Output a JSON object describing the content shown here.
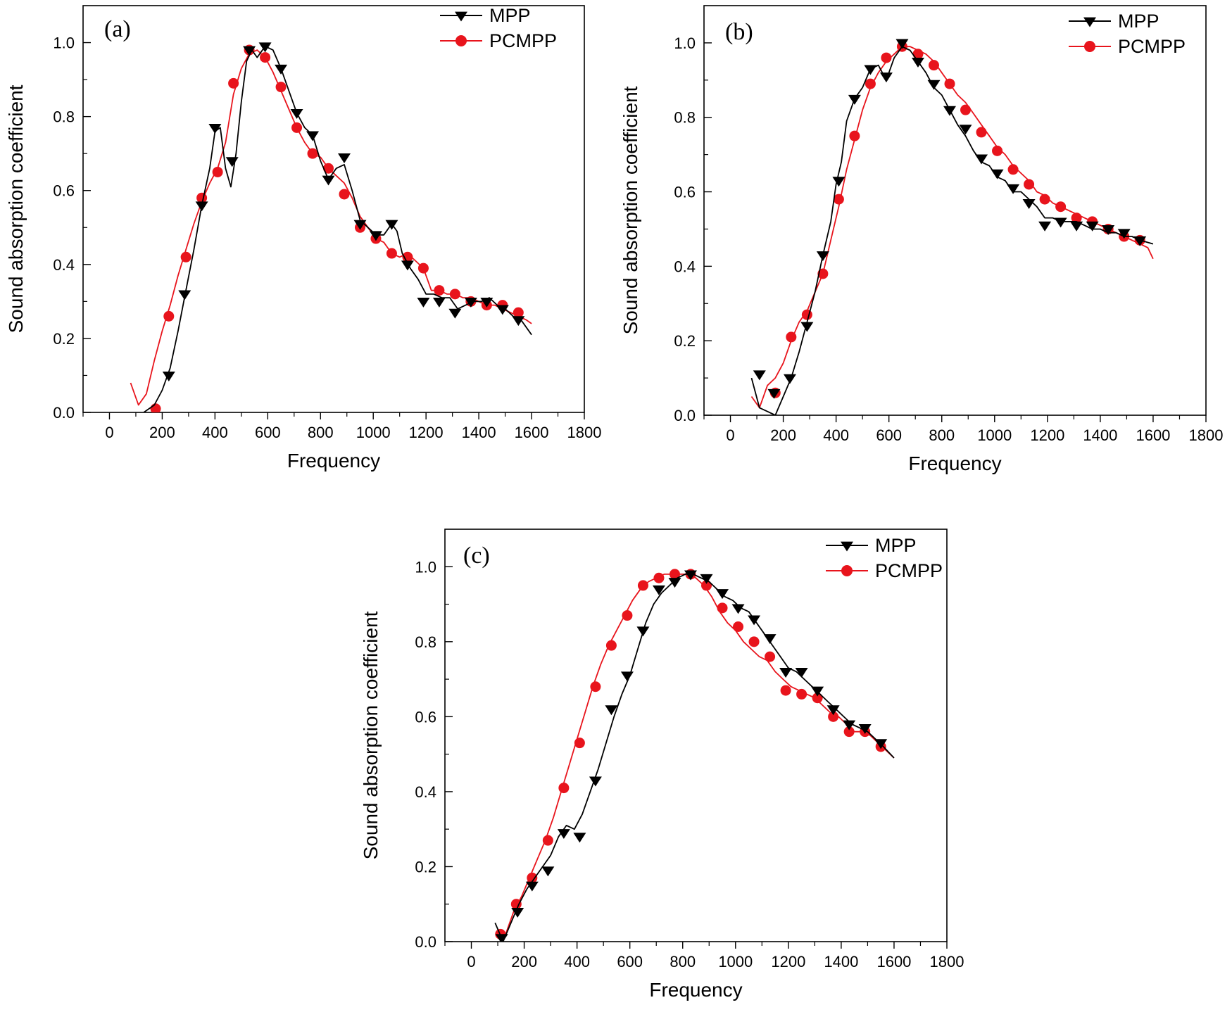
{
  "chart_data": [
    {
      "type": "line",
      "panel": "(a)",
      "xlabel": "Frequency",
      "ylabel": "Sound absorption coefficient",
      "xlim": [
        -100,
        1800
      ],
      "ylim": [
        0,
        1.1
      ],
      "xticks": [
        0,
        200,
        400,
        600,
        800,
        1000,
        1200,
        1400,
        1600,
        1800
      ],
      "yticks": [
        0.0,
        0.2,
        0.4,
        0.6,
        0.8,
        1.0
      ],
      "grid": false,
      "legend": "top-right",
      "series": [
        {
          "name": "MPP",
          "color": "#000000",
          "marker": "triangle-down",
          "x": [
            130,
            170,
            200,
            230,
            260,
            290,
            320,
            350,
            380,
            400,
            420,
            440,
            460,
            480,
            500,
            520,
            540,
            560,
            590,
            620,
            650,
            680,
            710,
            740,
            770,
            800,
            830,
            860,
            890,
            920,
            950,
            980,
            1010,
            1040,
            1070,
            1090,
            1110,
            1140,
            1170,
            1200,
            1230,
            1260,
            1290,
            1320,
            1350,
            1380,
            1410,
            1440,
            1470,
            1500,
            1530,
            1560,
            1600
          ],
          "y": [
            0.0,
            0.02,
            0.06,
            0.12,
            0.22,
            0.33,
            0.44,
            0.56,
            0.66,
            0.76,
            0.77,
            0.66,
            0.61,
            0.7,
            0.84,
            0.95,
            0.98,
            0.96,
            0.99,
            0.98,
            0.93,
            0.87,
            0.81,
            0.77,
            0.75,
            0.68,
            0.63,
            0.66,
            0.67,
            0.6,
            0.52,
            0.5,
            0.48,
            0.48,
            0.51,
            0.49,
            0.43,
            0.39,
            0.36,
            0.32,
            0.32,
            0.31,
            0.31,
            0.28,
            0.29,
            0.3,
            0.3,
            0.31,
            0.29,
            0.28,
            0.26,
            0.25,
            0.21
          ],
          "markers_x": [
            225,
            285,
            350,
            400,
            465,
            530,
            590,
            650,
            710,
            770,
            830,
            890,
            950,
            1010,
            1070,
            1130,
            1190,
            1250,
            1310,
            1370,
            1430,
            1490,
            1550
          ],
          "markers_y": [
            0.1,
            0.32,
            0.56,
            0.77,
            0.68,
            0.98,
            0.99,
            0.93,
            0.81,
            0.75,
            0.63,
            0.69,
            0.51,
            0.48,
            0.51,
            0.4,
            0.3,
            0.3,
            0.27,
            0.3,
            0.3,
            0.28,
            0.25
          ]
        },
        {
          "name": "PCMPP",
          "color": "#e8141c",
          "marker": "circle",
          "x": [
            80,
            110,
            140,
            170,
            200,
            230,
            260,
            290,
            320,
            350,
            380,
            410,
            440,
            470,
            500,
            530,
            560,
            590,
            620,
            650,
            680,
            710,
            740,
            770,
            800,
            830,
            860,
            890,
            920,
            950,
            980,
            1010,
            1040,
            1070,
            1100,
            1130,
            1160,
            1190,
            1220,
            1250,
            1280,
            1310,
            1340,
            1370,
            1400,
            1430,
            1460,
            1490,
            1520,
            1550,
            1580,
            1600
          ],
          "y": [
            0.08,
            0.02,
            0.05,
            0.14,
            0.22,
            0.29,
            0.37,
            0.44,
            0.51,
            0.57,
            0.62,
            0.66,
            0.73,
            0.86,
            0.93,
            0.97,
            0.98,
            0.96,
            0.92,
            0.87,
            0.82,
            0.77,
            0.73,
            0.7,
            0.69,
            0.66,
            0.64,
            0.62,
            0.58,
            0.53,
            0.5,
            0.47,
            0.46,
            0.43,
            0.42,
            0.43,
            0.41,
            0.39,
            0.33,
            0.33,
            0.32,
            0.32,
            0.31,
            0.31,
            0.3,
            0.29,
            0.29,
            0.28,
            0.27,
            0.26,
            0.25,
            0.24
          ],
          "markers_x": [
            175,
            225,
            290,
            350,
            410,
            470,
            530,
            590,
            650,
            710,
            770,
            830,
            890,
            950,
            1010,
            1070,
            1130,
            1190,
            1250,
            1310,
            1370,
            1430,
            1490,
            1550
          ],
          "markers_y": [
            0.01,
            0.26,
            0.42,
            0.58,
            0.65,
            0.89,
            0.98,
            0.96,
            0.88,
            0.77,
            0.7,
            0.66,
            0.59,
            0.5,
            0.47,
            0.43,
            0.42,
            0.39,
            0.33,
            0.32,
            0.3,
            0.29,
            0.29,
            0.27
          ]
        }
      ]
    },
    {
      "type": "line",
      "panel": "(b)",
      "xlabel": "Frequency",
      "ylabel": "Sound absorption coefficient",
      "xlim": [
        -100,
        1800
      ],
      "ylim": [
        0,
        1.1
      ],
      "xticks": [
        0,
        200,
        400,
        600,
        800,
        1000,
        1200,
        1400,
        1600,
        1800
      ],
      "yticks": [
        0.0,
        0.2,
        0.4,
        0.6,
        0.8,
        1.0
      ],
      "grid": false,
      "legend": "top-right",
      "series": [
        {
          "name": "MPP",
          "color": "#000000",
          "marker": "triangle-down",
          "x": [
            80,
            110,
            140,
            170,
            200,
            230,
            260,
            290,
            320,
            350,
            380,
            400,
            420,
            440,
            470,
            500,
            530,
            560,
            590,
            620,
            650,
            680,
            710,
            740,
            770,
            800,
            830,
            860,
            890,
            920,
            950,
            980,
            1010,
            1040,
            1070,
            1100,
            1130,
            1160,
            1190,
            1220,
            1250,
            1280,
            1310,
            1340,
            1370,
            1400,
            1430,
            1460,
            1490,
            1520,
            1550,
            1600
          ],
          "y": [
            0.1,
            0.02,
            0.01,
            0.0,
            0.05,
            0.1,
            0.17,
            0.25,
            0.33,
            0.43,
            0.52,
            0.62,
            0.68,
            0.79,
            0.85,
            0.88,
            0.93,
            0.94,
            0.9,
            0.96,
            0.99,
            0.98,
            0.95,
            0.92,
            0.88,
            0.86,
            0.82,
            0.78,
            0.75,
            0.71,
            0.68,
            0.67,
            0.64,
            0.63,
            0.6,
            0.6,
            0.58,
            0.56,
            0.53,
            0.53,
            0.52,
            0.52,
            0.52,
            0.51,
            0.5,
            0.5,
            0.49,
            0.49,
            0.48,
            0.48,
            0.47,
            0.46
          ],
          "markers_x": [
            110,
            165,
            225,
            290,
            350,
            410,
            470,
            530,
            590,
            650,
            710,
            770,
            830,
            890,
            950,
            1010,
            1070,
            1130,
            1190,
            1250,
            1310,
            1370,
            1430,
            1490,
            1550
          ],
          "markers_y": [
            0.11,
            0.06,
            0.1,
            0.24,
            0.43,
            0.63,
            0.85,
            0.93,
            0.91,
            1.0,
            0.95,
            0.89,
            0.82,
            0.77,
            0.69,
            0.65,
            0.61,
            0.57,
            0.51,
            0.52,
            0.51,
            0.51,
            0.5,
            0.49,
            0.47
          ]
        },
        {
          "name": "PCMPP",
          "color": "#e8141c",
          "marker": "circle",
          "x": [
            80,
            110,
            140,
            170,
            200,
            230,
            260,
            290,
            320,
            350,
            380,
            410,
            440,
            470,
            500,
            530,
            560,
            590,
            620,
            650,
            680,
            710,
            740,
            770,
            800,
            830,
            860,
            890,
            920,
            950,
            980,
            1010,
            1040,
            1070,
            1100,
            1130,
            1160,
            1190,
            1220,
            1250,
            1280,
            1310,
            1340,
            1370,
            1400,
            1430,
            1460,
            1490,
            1520,
            1550,
            1580,
            1600
          ],
          "y": [
            0.05,
            0.02,
            0.08,
            0.1,
            0.14,
            0.2,
            0.25,
            0.28,
            0.33,
            0.38,
            0.47,
            0.56,
            0.66,
            0.74,
            0.82,
            0.88,
            0.92,
            0.95,
            0.97,
            0.99,
            0.99,
            0.98,
            0.97,
            0.95,
            0.92,
            0.89,
            0.86,
            0.84,
            0.81,
            0.78,
            0.75,
            0.72,
            0.7,
            0.67,
            0.65,
            0.63,
            0.6,
            0.59,
            0.57,
            0.56,
            0.55,
            0.54,
            0.53,
            0.52,
            0.51,
            0.5,
            0.49,
            0.48,
            0.47,
            0.46,
            0.45,
            0.42
          ],
          "markers_x": [
            170,
            230,
            290,
            350,
            410,
            470,
            530,
            590,
            650,
            710,
            770,
            830,
            890,
            950,
            1010,
            1070,
            1130,
            1190,
            1250,
            1310,
            1370,
            1430,
            1490,
            1550
          ],
          "markers_y": [
            0.06,
            0.21,
            0.27,
            0.38,
            0.58,
            0.75,
            0.89,
            0.96,
            0.99,
            0.97,
            0.94,
            0.89,
            0.82,
            0.76,
            0.71,
            0.66,
            0.62,
            0.58,
            0.56,
            0.53,
            0.52,
            0.5,
            0.48,
            0.47
          ]
        }
      ]
    },
    {
      "type": "line",
      "panel": "(c)",
      "xlabel": "Frequency",
      "ylabel": "Sound absorption coefficient",
      "xlim": [
        -100,
        1800
      ],
      "ylim": [
        0,
        1.1
      ],
      "xticks": [
        0,
        200,
        400,
        600,
        800,
        1000,
        1200,
        1400,
        1600,
        1800
      ],
      "yticks": [
        0.0,
        0.2,
        0.4,
        0.6,
        0.8,
        1.0
      ],
      "grid": false,
      "legend": "top-right",
      "series": [
        {
          "name": "MPP",
          "color": "#000000",
          "marker": "triangle-down",
          "x": [
            90,
            120,
            150,
            180,
            210,
            240,
            270,
            300,
            330,
            360,
            390,
            420,
            450,
            480,
            510,
            540,
            570,
            600,
            630,
            660,
            690,
            720,
            750,
            780,
            810,
            840,
            870,
            900,
            930,
            960,
            990,
            1020,
            1050,
            1080,
            1110,
            1140,
            1170,
            1200,
            1230,
            1260,
            1290,
            1320,
            1350,
            1380,
            1410,
            1440,
            1470,
            1500,
            1530,
            1560,
            1600
          ],
          "y": [
            0.05,
            0.0,
            0.05,
            0.1,
            0.14,
            0.17,
            0.2,
            0.23,
            0.28,
            0.31,
            0.3,
            0.34,
            0.4,
            0.46,
            0.53,
            0.6,
            0.66,
            0.71,
            0.78,
            0.85,
            0.9,
            0.93,
            0.95,
            0.97,
            0.98,
            0.98,
            0.97,
            0.96,
            0.94,
            0.92,
            0.91,
            0.89,
            0.88,
            0.85,
            0.82,
            0.79,
            0.76,
            0.73,
            0.72,
            0.7,
            0.68,
            0.66,
            0.64,
            0.62,
            0.6,
            0.58,
            0.57,
            0.56,
            0.54,
            0.52,
            0.49
          ],
          "markers_x": [
            115,
            175,
            230,
            290,
            350,
            410,
            470,
            530,
            590,
            650,
            710,
            770,
            830,
            890,
            950,
            1010,
            1070,
            1130,
            1190,
            1250,
            1310,
            1370,
            1430,
            1490,
            1550
          ],
          "markers_y": [
            0.01,
            0.08,
            0.15,
            0.19,
            0.29,
            0.28,
            0.43,
            0.62,
            0.71,
            0.83,
            0.94,
            0.96,
            0.98,
            0.97,
            0.93,
            0.89,
            0.86,
            0.81,
            0.72,
            0.72,
            0.67,
            0.62,
            0.58,
            0.57,
            0.53
          ]
        },
        {
          "name": "PCMPP",
          "color": "#e8141c",
          "marker": "circle",
          "x": [
            100,
            130,
            160,
            190,
            220,
            250,
            280,
            310,
            340,
            370,
            400,
            430,
            460,
            490,
            520,
            550,
            580,
            610,
            640,
            670,
            700,
            730,
            760,
            790,
            820,
            850,
            880,
            910,
            940,
            970,
            1000,
            1030,
            1060,
            1090,
            1120,
            1150,
            1180,
            1210,
            1240,
            1270,
            1300,
            1330,
            1360,
            1390,
            1420,
            1450,
            1480,
            1510,
            1540,
            1570,
            1600
          ],
          "y": [
            0.02,
            0.02,
            0.08,
            0.12,
            0.17,
            0.22,
            0.27,
            0.33,
            0.4,
            0.47,
            0.54,
            0.61,
            0.68,
            0.74,
            0.79,
            0.83,
            0.87,
            0.91,
            0.94,
            0.96,
            0.97,
            0.98,
            0.98,
            0.98,
            0.98,
            0.97,
            0.95,
            0.92,
            0.88,
            0.85,
            0.83,
            0.8,
            0.78,
            0.76,
            0.75,
            0.72,
            0.7,
            0.68,
            0.67,
            0.66,
            0.65,
            0.63,
            0.61,
            0.6,
            0.58,
            0.56,
            0.56,
            0.55,
            0.53,
            0.51,
            0.49
          ],
          "markers_x": [
            110,
            170,
            230,
            290,
            350,
            410,
            470,
            530,
            590,
            650,
            710,
            770,
            830,
            890,
            950,
            1010,
            1070,
            1130,
            1190,
            1250,
            1310,
            1370,
            1430,
            1490,
            1550
          ],
          "markers_y": [
            0.02,
            0.1,
            0.17,
            0.27,
            0.41,
            0.53,
            0.68,
            0.79,
            0.87,
            0.95,
            0.97,
            0.98,
            0.98,
            0.95,
            0.89,
            0.84,
            0.8,
            0.76,
            0.67,
            0.66,
            0.65,
            0.6,
            0.56,
            0.56,
            0.52
          ]
        }
      ]
    }
  ]
}
